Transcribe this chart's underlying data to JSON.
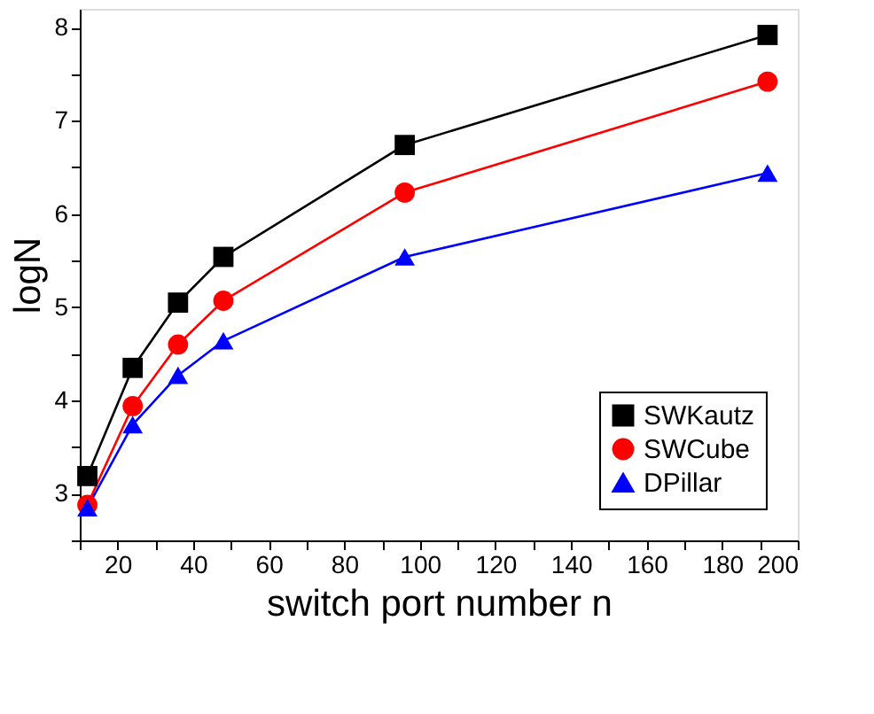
{
  "chart_data": {
    "type": "line",
    "xlabel": "switch port number n",
    "ylabel": "logN",
    "x": [
      12,
      24,
      36,
      48,
      96,
      192
    ],
    "series": [
      {
        "name": "SWKautz",
        "color": "#000000",
        "marker": "square",
        "values": [
          3.19,
          4.35,
          5.05,
          5.54,
          6.74,
          7.92
        ]
      },
      {
        "name": "SWCube",
        "color": "#ff0000",
        "marker": "circle",
        "values": [
          2.88,
          3.94,
          4.6,
          5.07,
          6.23,
          7.42
        ]
      },
      {
        "name": "DPillar",
        "color": "#0000ff",
        "marker": "triangle",
        "values": [
          2.85,
          3.74,
          4.27,
          4.64,
          5.54,
          6.44
        ]
      }
    ],
    "xlim": [
      10,
      200
    ],
    "xticks": [
      {
        "value": 10,
        "label": null
      },
      20,
      {
        "value": 30,
        "label": null
      },
      40,
      {
        "value": 50,
        "label": null
      },
      60,
      {
        "value": 70,
        "label": null
      },
      80,
      {
        "value": 90,
        "label": null
      },
      100,
      {
        "value": 110,
        "label": null
      },
      120,
      {
        "value": 130,
        "label": null
      },
      140,
      {
        "value": 150,
        "label": null
      },
      160,
      {
        "value": 170,
        "label": null
      },
      180,
      {
        "value": 190,
        "label": null
      },
      200
    ],
    "ylim": [
      2.5,
      8.2
    ],
    "yticks": [
      {
        "value": 2.5,
        "label": null
      },
      3,
      {
        "value": 3.5,
        "label": null
      },
      4,
      {
        "value": 4.5,
        "label": null
      },
      5,
      {
        "value": 5.5,
        "label": null
      },
      6,
      {
        "value": 6.5,
        "label": null
      },
      7,
      {
        "value": 7.5,
        "label": null
      },
      8
    ],
    "grid": false,
    "legend": "bottom right",
    "line_style": "solid"
  }
}
